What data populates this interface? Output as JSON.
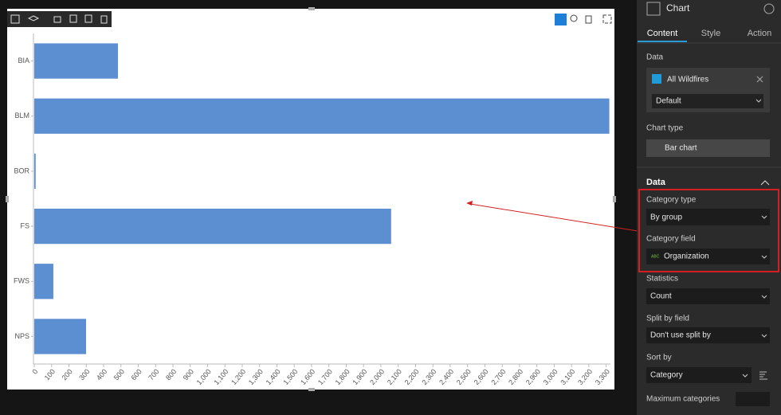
{
  "chart_data": {
    "type": "bar",
    "orientation": "horizontal",
    "categories": [
      "BIA",
      "BLM",
      "BOR",
      "FS",
      "FWS",
      "NPS"
    ],
    "values": [
      483,
      3318,
      8,
      2059,
      110,
      299
    ],
    "color": "#5b8fd1",
    "xlim": [
      0,
      3320
    ],
    "xticks": [
      0,
      100,
      200,
      300,
      400,
      500,
      600,
      700,
      800,
      900,
      {
        "value": 1000,
        "label": "1,000"
      },
      {
        "value": 1100,
        "label": "1,100"
      },
      {
        "value": 1200,
        "label": "1,200"
      },
      {
        "value": 1300,
        "label": "1,300"
      },
      {
        "value": 1400,
        "label": "1,400"
      },
      {
        "value": 1500,
        "label": "1,500"
      },
      {
        "value": 1600,
        "label": "1,600"
      },
      {
        "value": 1700,
        "label": "1,700"
      },
      {
        "value": 1800,
        "label": "1,800"
      },
      {
        "value": 1900,
        "label": "1,900"
      },
      {
        "value": 2000,
        "label": "2,000"
      },
      {
        "value": 2100,
        "label": "2,100"
      },
      {
        "value": 2200,
        "label": "2,200"
      },
      {
        "value": 2300,
        "label": "2,300"
      },
      {
        "value": 2400,
        "label": "2,400"
      },
      {
        "value": 2500,
        "label": "2,500"
      },
      {
        "value": 2600,
        "label": "2,600"
      },
      {
        "value": 2700,
        "label": "2,700"
      },
      {
        "value": 2800,
        "label": "2,800"
      },
      {
        "value": 2900,
        "label": "2,900"
      },
      {
        "value": 3000,
        "label": "3,000"
      },
      {
        "value": 3100,
        "label": "3,100"
      },
      {
        "value": 3200,
        "label": "3,200"
      },
      {
        "value": 3300,
        "label": "3,300"
      }
    ]
  },
  "panel": {
    "title": "Chart",
    "tabs": [
      "Content",
      "Style",
      "Action"
    ],
    "data_label": "Data",
    "source": "All Wildfires",
    "view": "Default",
    "chart_type_label": "Chart type",
    "chart_type": "Bar chart",
    "section": "Data",
    "category_type_label": "Category type",
    "category_type": "By group",
    "category_field_label": "Category field",
    "field_type": "ABC",
    "category_field": "Organization",
    "statistics_label": "Statistics",
    "statistics": "Count",
    "split_label": "Split by field",
    "split": "Don't use split by",
    "sort_label": "Sort by",
    "sort": "Category",
    "max_label": "Maximum categories"
  }
}
